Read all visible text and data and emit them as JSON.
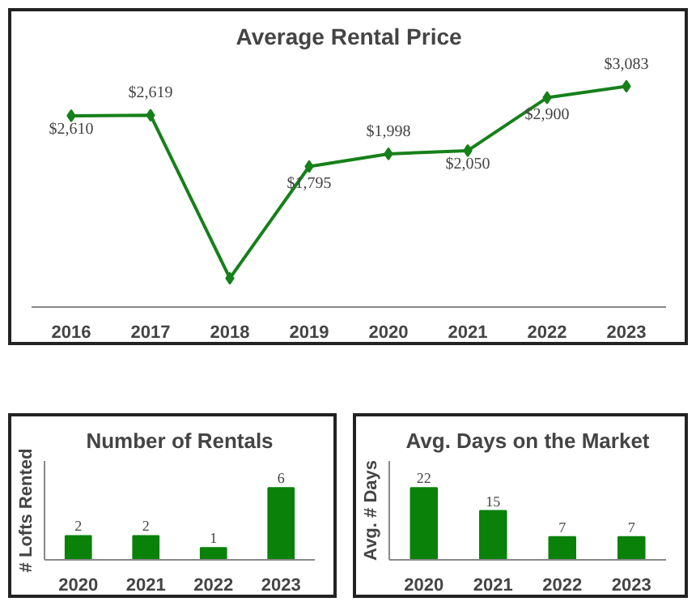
{
  "chart_data": [
    {
      "type": "line",
      "title": "Average Rental Price",
      "categories": [
        "2016",
        "2017",
        "2018",
        "2019",
        "2020",
        "2021",
        "2022",
        "2023"
      ],
      "series": [
        {
          "color": "#16801a",
          "values": [
            2610,
            2619,
            0,
            1795,
            1998,
            2050,
            2900,
            3083
          ],
          "value_labels": [
            "$2,610",
            "$2,619",
            null,
            "$1,795",
            "$1,998",
            "$2,050",
            "$2,900",
            "$3,083"
          ]
        }
      ],
      "tick_labels": "x",
      "marker": "diamond",
      "grid": false
    },
    {
      "type": "bar",
      "title": "Number of Rentals",
      "ylabel": "# Lofts Rented",
      "categories": [
        "2020",
        "2021",
        "2022",
        "2023"
      ],
      "values": [
        2,
        2,
        1,
        6
      ],
      "color": "#0a820a",
      "data_labels": true,
      "tick_labels": "x",
      "grid": false
    },
    {
      "type": "bar",
      "title": "Avg. Days on the Market",
      "ylabel": "Avg. # Days",
      "categories": [
        "2020",
        "2021",
        "2022",
        "2023"
      ],
      "values": [
        22,
        15,
        7,
        7
      ],
      "color": "#0a820a",
      "data_labels": true,
      "tick_labels": "x",
      "grid": false
    }
  ]
}
